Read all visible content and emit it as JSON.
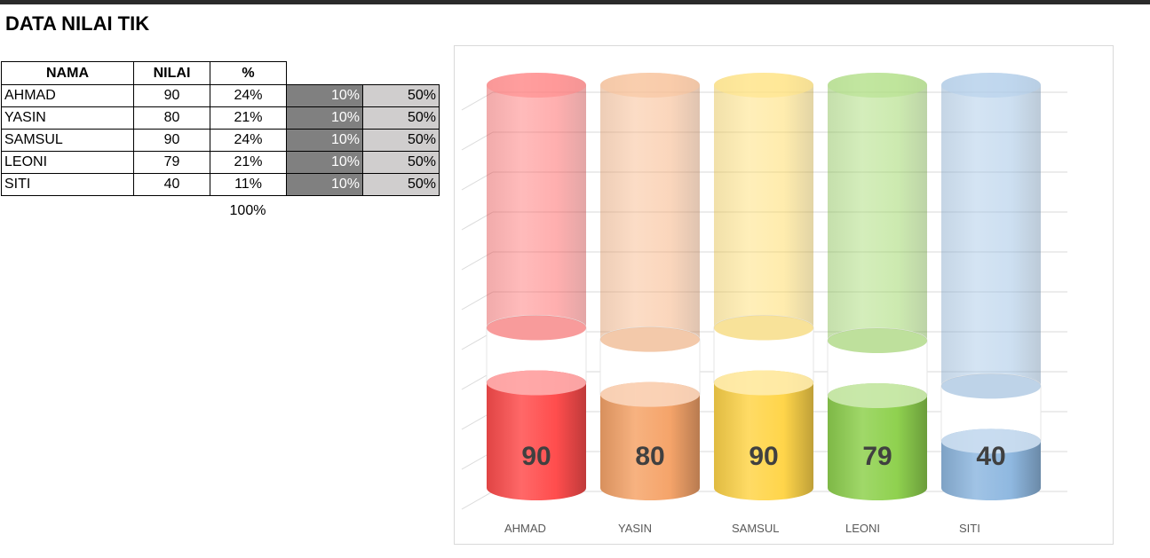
{
  "sheet": {
    "title": "DATA NILAI TIK",
    "headers": [
      "NAMA",
      "NILAI",
      "%"
    ],
    "rows": [
      {
        "nama": "AHMAD",
        "nilai": "90",
        "pct": "24%",
        "d": "10%",
        "e": "50%"
      },
      {
        "nama": "YASIN",
        "nilai": "80",
        "pct": "21%",
        "d": "10%",
        "e": "50%"
      },
      {
        "nama": "SAMSUL",
        "nilai": "90",
        "pct": "24%",
        "d": "10%",
        "e": "50%"
      },
      {
        "nama": "LEONI",
        "nilai": "79",
        "pct": "21%",
        "d": "10%",
        "e": "50%"
      },
      {
        "nama": "SITI",
        "nilai": "40",
        "pct": "11%",
        "d": "10%",
        "e": "50%"
      }
    ],
    "total_pct": "100%"
  },
  "chart_data": {
    "type": "bar",
    "categories": [
      "AHMAD",
      "YASIN",
      "SAMSUL",
      "LEONI",
      "SITI"
    ],
    "values": [
      90,
      80,
      90,
      79,
      40
    ],
    "colors": [
      "#ff4d4d",
      "#f5a46a",
      "#ffd54a",
      "#8fd14f",
      "#8fb8e0"
    ],
    "stacked_segments": [
      "NILAI",
      "10%",
      "50%"
    ],
    "gridlines": true,
    "data_labels": true,
    "legend": "none"
  }
}
